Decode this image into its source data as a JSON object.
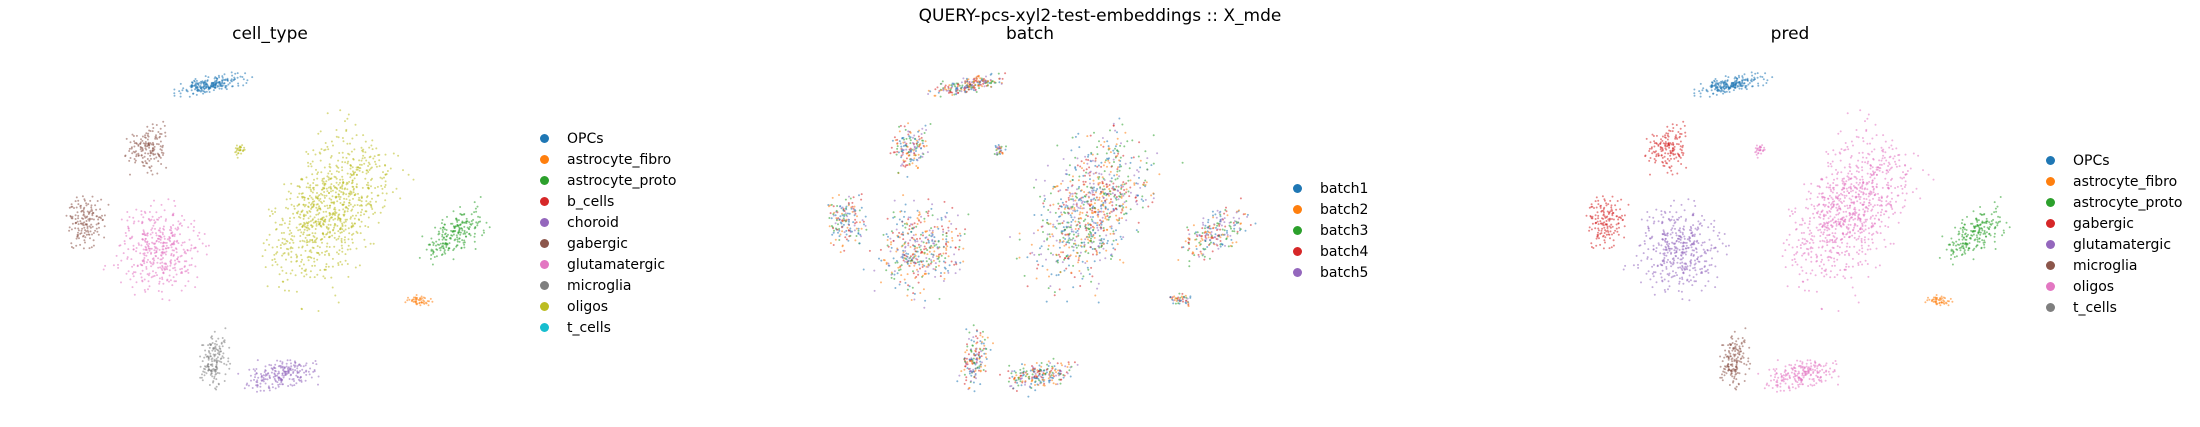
{
  "figure": {
    "suptitle": "QUERY-pcs-xyl2-test-embeddings :: X_mde"
  },
  "chart_data": [
    {
      "type": "scatter",
      "title": "cell_type",
      "xlabel": "",
      "ylabel": "",
      "grid": false,
      "axes_visible": false,
      "legend_position": "right",
      "legend": [
        {
          "label": "OPCs",
          "color": "#1f77b4"
        },
        {
          "label": "astrocyte_fibro",
          "color": "#ff7f0e"
        },
        {
          "label": "astrocyte_proto",
          "color": "#2ca02c"
        },
        {
          "label": "b_cells",
          "color": "#d62728"
        },
        {
          "label": "choroid",
          "color": "#9467bd"
        },
        {
          "label": "gabergic",
          "color": "#8c564b"
        },
        {
          "label": "glutamatergic",
          "color": "#e377c2"
        },
        {
          "label": "microglia",
          "color": "#7f7f7f"
        },
        {
          "label": "oligos",
          "color": "#bcbd22"
        },
        {
          "label": "t_cells",
          "color": "#17becf"
        }
      ]
    },
    {
      "type": "scatter",
      "title": "batch",
      "xlabel": "",
      "ylabel": "",
      "grid": false,
      "axes_visible": false,
      "legend_position": "right",
      "legend": [
        {
          "label": "batch1",
          "color": "#1f77b4"
        },
        {
          "label": "batch2",
          "color": "#ff7f0e"
        },
        {
          "label": "batch3",
          "color": "#2ca02c"
        },
        {
          "label": "batch4",
          "color": "#d62728"
        },
        {
          "label": "batch5",
          "color": "#9467bd"
        }
      ]
    },
    {
      "type": "scatter",
      "title": "pred",
      "xlabel": "",
      "ylabel": "",
      "grid": false,
      "axes_visible": false,
      "legend_position": "right",
      "legend": [
        {
          "label": "OPCs",
          "color": "#1f77b4"
        },
        {
          "label": "astrocyte_fibro",
          "color": "#ff7f0e"
        },
        {
          "label": "astrocyte_proto",
          "color": "#2ca02c"
        },
        {
          "label": "gabergic",
          "color": "#d62728"
        },
        {
          "label": "glutamatergic",
          "color": "#9467bd"
        },
        {
          "label": "microglia",
          "color": "#8c564b"
        },
        {
          "label": "oligos",
          "color": "#e377c2"
        },
        {
          "label": "t_cells",
          "color": "#7f7f7f"
        }
      ]
    }
  ]
}
